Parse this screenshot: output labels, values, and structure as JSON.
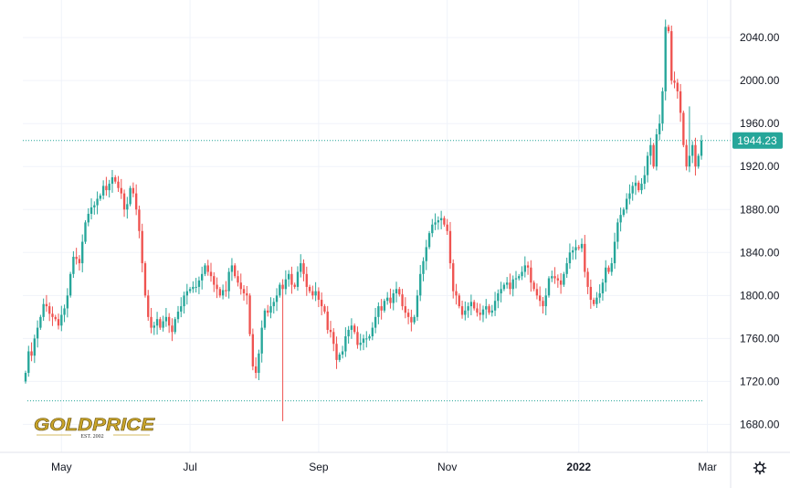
{
  "chart_data": {
    "type": "candlestick",
    "instrument_logo": "GOLDPRICE",
    "logo_tagline": "EST. 2002",
    "y_ticks": [
      "1680.00",
      "1720.00",
      "1760.00",
      "1800.00",
      "1840.00",
      "1880.00",
      "1920.00",
      "1960.00",
      "2000.00",
      "2040.00"
    ],
    "ylim": [
      1654,
      2075
    ],
    "x_ticks": [
      {
        "label": "May",
        "bold": false,
        "index": 12
      },
      {
        "label": "Jul",
        "bold": false,
        "index": 55
      },
      {
        "label": "Sep",
        "bold": false,
        "index": 98
      },
      {
        "label": "Nov",
        "bold": false,
        "index": 141
      },
      {
        "label": "2022",
        "bold": true,
        "index": 185
      },
      {
        "label": "Mar",
        "bold": false,
        "index": 228
      }
    ],
    "last_price": 1944.23,
    "last_price_label": "1944.23",
    "low_reference": 1702,
    "colors": {
      "up": "#26a69a",
      "down": "#ef5350",
      "price_tag": "#26a69a",
      "grid": "#f0f3fa",
      "logo": "#c9a52b"
    },
    "settings_icon": "gear-icon",
    "closes": [
      1728,
      1748,
      1744,
      1760,
      1770,
      1780,
      1792,
      1790,
      1783,
      1780,
      1778,
      1772,
      1782,
      1788,
      1800,
      1820,
      1836,
      1834,
      1830,
      1850,
      1868,
      1876,
      1882,
      1884,
      1890,
      1893,
      1902,
      1898,
      1904,
      1910,
      1906,
      1900,
      1895,
      1880,
      1885,
      1900,
      1895,
      1880,
      1860,
      1830,
      1800,
      1780,
      1770,
      1772,
      1778,
      1770,
      1776,
      1780,
      1772,
      1766,
      1778,
      1785,
      1790,
      1800,
      1804,
      1806,
      1808,
      1808,
      1814,
      1820,
      1828,
      1822,
      1818,
      1810,
      1806,
      1800,
      1805,
      1804,
      1822,
      1828,
      1818,
      1812,
      1806,
      1802,
      1800,
      1764,
      1734,
      1728,
      1746,
      1770,
      1786,
      1784,
      1790,
      1794,
      1800,
      1810,
      1806,
      1815,
      1820,
      1810,
      1808,
      1822,
      1830,
      1820,
      1808,
      1804,
      1800,
      1804,
      1796,
      1790,
      1785,
      1768,
      1766,
      1755,
      1740,
      1745,
      1748,
      1762,
      1768,
      1772,
      1766,
      1754,
      1756,
      1760,
      1760,
      1762,
      1770,
      1780,
      1790,
      1786,
      1795,
      1798,
      1793,
      1802,
      1806,
      1801,
      1790,
      1784,
      1780,
      1775,
      1780,
      1800,
      1820,
      1832,
      1845,
      1858,
      1866,
      1868,
      1870,
      1872,
      1866,
      1860,
      1830,
      1804,
      1800,
      1790,
      1782,
      1786,
      1790,
      1794,
      1788,
      1784,
      1782,
      1787,
      1790,
      1784,
      1786,
      1795,
      1802,
      1806,
      1810,
      1812,
      1806,
      1815,
      1816,
      1818,
      1822,
      1828,
      1826,
      1812,
      1806,
      1800,
      1795,
      1790,
      1800,
      1816,
      1818,
      1816,
      1814,
      1810,
      1820,
      1830,
      1840,
      1842,
      1845,
      1844,
      1848,
      1822,
      1808,
      1796,
      1792,
      1798,
      1802,
      1812,
      1826,
      1822,
      1830,
      1850,
      1868,
      1875,
      1880,
      1890,
      1895,
      1902,
      1905,
      1898,
      1904,
      1912,
      1930,
      1940,
      1920,
      1950,
      1960,
      1990,
      2050,
      2046,
      2000,
      1998,
      1990,
      1970,
      1940,
      1920,
      1930,
      1940,
      1920,
      1930,
      1944
    ]
  }
}
